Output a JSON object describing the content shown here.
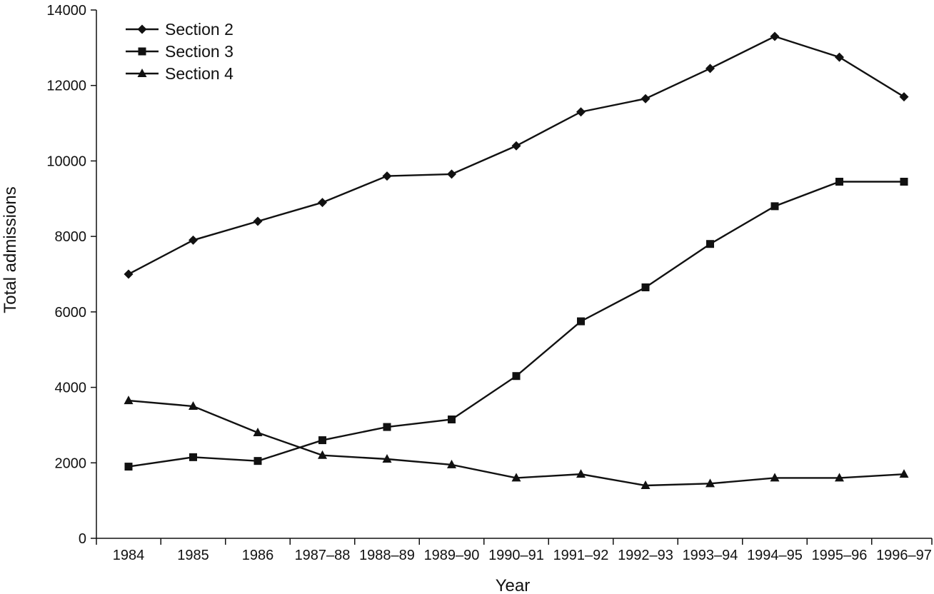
{
  "chart_data": {
    "type": "line",
    "xlabel": "Year",
    "ylabel": "Total admissions",
    "ylim": [
      0,
      14000
    ],
    "yticks": [
      0,
      2000,
      4000,
      6000,
      8000,
      10000,
      12000,
      14000
    ],
    "categories": [
      "1984",
      "1985",
      "1986",
      "1987–88",
      "1988–89",
      "1989–90",
      "1990–91",
      "1991–92",
      "1992–93",
      "1993–94",
      "1994–95",
      "1995–96",
      "1996–97"
    ],
    "legend_position": "top-left",
    "grid": false,
    "series": [
      {
        "name": "Section 2",
        "marker": "diamond",
        "values": [
          7000,
          7900,
          8400,
          8900,
          9600,
          9650,
          10400,
          11300,
          11650,
          12450,
          13300,
          12750,
          11700
        ]
      },
      {
        "name": "Section 3",
        "marker": "square",
        "values": [
          1900,
          2150,
          2050,
          2600,
          2950,
          3150,
          4300,
          5750,
          6650,
          7800,
          8800,
          9450,
          9450
        ]
      },
      {
        "name": "Section 4",
        "marker": "triangle",
        "values": [
          3650,
          3500,
          2800,
          2200,
          2100,
          1950,
          1600,
          1700,
          1400,
          1450,
          1600,
          1600,
          1700
        ]
      }
    ]
  }
}
